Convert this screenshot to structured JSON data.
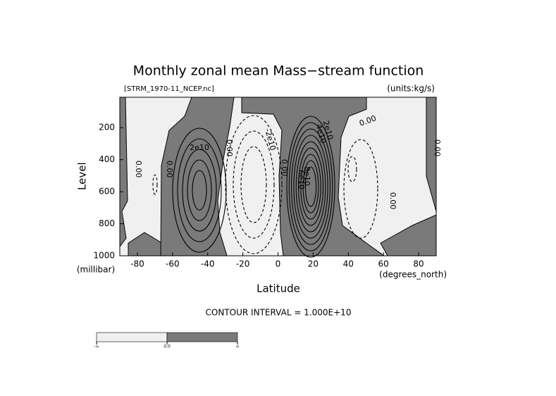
{
  "chart_data": {
    "type": "contour",
    "title": "Monthly zonal mean Mass−stream function",
    "subtitle": "[STRM_1970-11_NCEP.nc]",
    "units": "(units:kg/s)",
    "x_label": "Latitude",
    "x_units": "(degrees_north)",
    "y_label": "Level",
    "y_units": "(millibar)",
    "note": "CONTOUR INTERVAL = 1.000E+10",
    "xlim": [
      -90,
      90
    ],
    "xticks": [
      -80,
      -60,
      -40,
      -20,
      0,
      20,
      40,
      60,
      80
    ],
    "ylim": [
      1000,
      10
    ],
    "yticks": [
      200,
      400,
      600,
      800,
      1000
    ],
    "contour_levels": [
      -30000000000.0,
      -20000000000.0,
      -10000000000.0,
      0,
      10000000000.0,
      20000000000.0,
      30000000000.0,
      40000000000.0,
      50000000000.0,
      60000000000.0,
      70000000000.0,
      80000000000.0,
      90000000000.0
    ],
    "contour_labels": [
      {
        "value": 20000000000.0,
        "label": "2e10"
      },
      {
        "value": 0,
        "label": "0.00"
      },
      {
        "value": 0,
        "label": "0.00"
      },
      {
        "value": 0,
        "label": "0.00"
      },
      {
        "value": -20000000000.0,
        "label": "-2e10"
      },
      {
        "value": 0,
        "label": "0.00"
      },
      {
        "value": 60000000000.0,
        "label": "6e10"
      },
      {
        "value": 80000000000.0,
        "label": "8e10"
      },
      {
        "value": 40000000000.0,
        "label": "4e10"
      },
      {
        "value": 20000000000.0,
        "label": "2e10"
      },
      {
        "value": 0,
        "label": "0.00"
      },
      {
        "value": 0,
        "label": "0.00"
      },
      {
        "value": 0,
        "label": "0.00"
      }
    ],
    "negative_color": "#f0f0f0",
    "positive_color": "#7a7a7a",
    "colorbar_labels": [
      "-∞",
      "0.0",
      "∞"
    ]
  }
}
